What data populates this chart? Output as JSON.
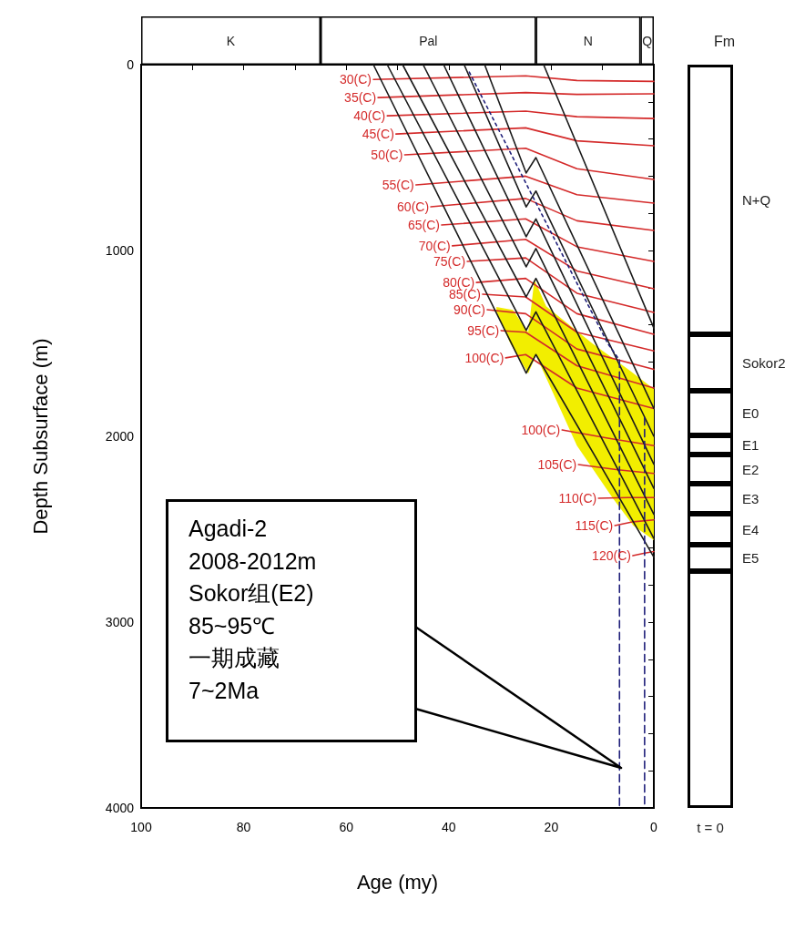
{
  "chart_data": [
    {
      "type": "line",
      "xlabel": "Age (my)",
      "ylabel": "Depth Subsurface (m)",
      "xlim": [
        100,
        0
      ],
      "xticks": [
        100,
        {
          "value": 90,
          "label": null
        },
        80,
        {
          "value": 70,
          "label": null
        },
        60,
        {
          "value": 50,
          "label": null
        },
        40,
        {
          "value": 30,
          "label": null
        },
        20,
        {
          "value": 10,
          "label": null
        },
        0
      ],
      "ylim": [
        4000,
        0
      ],
      "yticks": [
        0,
        {
          "value": 200,
          "label": null
        },
        {
          "value": 400,
          "label": null
        },
        {
          "value": 600,
          "label": null
        },
        {
          "value": 800,
          "label": null
        },
        1000,
        {
          "value": 1200,
          "label": null
        },
        {
          "value": 1400,
          "label": null
        },
        {
          "value": 1600,
          "label": null
        },
        {
          "value": 1800,
          "label": null
        },
        2000,
        {
          "value": 2200,
          "label": null
        },
        {
          "value": 2400,
          "label": null
        },
        {
          "value": 2600,
          "label": null
        },
        {
          "value": 2800,
          "label": null
        },
        3000,
        {
          "value": 3200,
          "label": null
        },
        {
          "value": 3400,
          "label": null
        },
        {
          "value": 3600,
          "label": null
        },
        {
          "value": 3800,
          "label": null
        },
        4000
      ],
      "grid": false,
      "marker": "none",
      "annotations": [
        "Agadi-2\n2008-2012m\nSokor组(E2)\n85~95℃\n一期成藏\n7~2Ma"
      ],
      "series": [
        {
          "type": "area",
          "color": "#f2ee00",
          "x": [
            30.7,
            27.5,
            24.5,
            23.3,
            21,
            12,
            5,
            0,
            0,
            4,
            8,
            15,
            23,
            24.5,
            28,
            30.7
          ],
          "values": [
            1304,
            1320,
            1440,
            1157,
            1300,
            1500,
            1640,
            1745,
            2559,
            2480,
            2333,
            2050,
            1564,
            1662,
            1500,
            1330
          ]
        },
        {
          "name": "30(C)",
          "color": "#d42a2a",
          "x": [
            54.7,
            25,
            15,
            0
          ],
          "values": [
            80,
            60,
            85,
            90
          ]
        },
        {
          "name": "35(C)",
          "color": "#d42a2a",
          "x": [
            53.8,
            25,
            15,
            0
          ],
          "values": [
            177,
            150,
            160,
            157
          ]
        },
        {
          "name": "40(C)",
          "color": "#d42a2a",
          "x": [
            52,
            25,
            15,
            0
          ],
          "values": [
            275,
            250,
            280,
            290
          ]
        },
        {
          "name": "45(C)",
          "color": "#d42a2a",
          "x": [
            50.3,
            25,
            15,
            0
          ],
          "values": [
            373,
            340,
            410,
            436
          ]
        },
        {
          "name": "50(C)",
          "color": "#d42a2a",
          "x": [
            48.6,
            25,
            15,
            0
          ],
          "values": [
            485,
            450,
            560,
            618
          ]
        },
        {
          "name": "55(C)",
          "color": "#d42a2a",
          "x": [
            46.4,
            25,
            15,
            0
          ],
          "values": [
            647,
            600,
            700,
            745
          ]
        },
        {
          "name": "60(C)",
          "color": "#d42a2a",
          "x": [
            43.5,
            25,
            15,
            0
          ],
          "values": [
            765,
            720,
            840,
            892
          ]
        },
        {
          "name": "65(C)",
          "color": "#d42a2a",
          "x": [
            41.4,
            25,
            15,
            0
          ],
          "values": [
            863,
            830,
            980,
            1059
          ]
        },
        {
          "name": "70(C)",
          "color": "#d42a2a",
          "x": [
            39.3,
            25,
            15,
            0
          ],
          "values": [
            975,
            940,
            1110,
            1206
          ]
        },
        {
          "name": "75(C)",
          "color": "#d42a2a",
          "x": [
            36.4,
            25,
            15,
            0
          ],
          "values": [
            1059,
            1040,
            1230,
            1333
          ]
        },
        {
          "name": "80(C)",
          "color": "#d42a2a",
          "x": [
            34.6,
            25,
            15,
            0
          ],
          "values": [
            1172,
            1150,
            1340,
            1451
          ]
        },
        {
          "name": "85(C)",
          "color": "#d42a2a",
          "x": [
            33.4,
            25,
            15,
            0
          ],
          "values": [
            1235,
            1250,
            1440,
            1540
          ]
        },
        {
          "name": "90(C)",
          "color": "#d42a2a",
          "x": [
            32.5,
            25,
            15,
            0
          ],
          "values": [
            1319,
            1340,
            1530,
            1640
          ]
        },
        {
          "name": "95(C)",
          "color": "#d42a2a",
          "x": [
            29.8,
            25,
            15,
            0
          ],
          "values": [
            1431,
            1440,
            1620,
            1740
          ]
        },
        {
          "name": "100(C)",
          "color": "#d42a2a",
          "x": [
            28.9,
            25,
            15,
            0
          ],
          "values": [
            1578,
            1560,
            1740,
            1850
          ]
        },
        {
          "name": "100(C)",
          "color": "#d42a2a",
          "x": [
            17.9,
            9,
            0
          ],
          "values": [
            1966,
            2010,
            2050
          ]
        },
        {
          "name": "105(C)",
          "color": "#d42a2a",
          "x": [
            14.7,
            7,
            0
          ],
          "values": [
            2152,
            2180,
            2200
          ]
        },
        {
          "name": "110(C)",
          "color": "#d42a2a",
          "x": [
            10.8,
            5,
            0
          ],
          "values": [
            2333,
            2330,
            2330
          ]
        },
        {
          "name": "115(C)",
          "color": "#d42a2a",
          "x": [
            7.6,
            4,
            0
          ],
          "values": [
            2480,
            2460,
            2450
          ]
        },
        {
          "name": "120(C)",
          "color": "#d42a2a",
          "x": [
            4.1,
            2,
            0
          ],
          "values": [
            2642,
            2630,
            2620
          ]
        },
        {
          "color": "#1a1a1a",
          "x": [
            54.7,
            24.9,
            23,
            0
          ],
          "values": [
            0,
            1660,
            1560,
            2650
          ]
        },
        {
          "color": "#1a1a1a",
          "x": [
            52,
            24.9,
            23,
            0
          ],
          "values": [
            0,
            1430,
            1330,
            2550
          ]
        },
        {
          "color": "#1a1a1a",
          "x": [
            49,
            24.9,
            23,
            0
          ],
          "values": [
            0,
            1250,
            1150,
            2420
          ]
        },
        {
          "color": "#1a1a1a",
          "x": [
            45,
            24.9,
            23,
            0
          ],
          "values": [
            0,
            1088,
            990,
            2280
          ]
        },
        {
          "color": "#1a1a1a",
          "x": [
            41,
            24.9,
            23,
            0
          ],
          "values": [
            0,
            926,
            830,
            2150
          ]
        },
        {
          "color": "#1a1a1a",
          "x": [
            37,
            24.9,
            23,
            0
          ],
          "values": [
            0,
            765,
            680,
            2000
          ]
        },
        {
          "color": "#1a1a1a",
          "x": [
            33,
            24.9,
            23,
            0
          ],
          "values": [
            0,
            583,
            500,
            1850
          ]
        },
        {
          "color": "#1a1a1a",
          "x": [
            21.5,
            0
          ],
          "values": [
            0,
            1417
          ]
        },
        {
          "color": "#1f1f7a",
          "line_style": "dotted",
          "x": [
            36,
            9,
            6.7
          ],
          "values": [
            40,
            1500,
            1590
          ]
        },
        {
          "color": "#1f1f7a",
          "line_style": "dashed",
          "x": [
            6.7,
            6.7
          ],
          "values": [
            1590,
            4000
          ]
        },
        {
          "color": "#1f1f7a",
          "line_style": "dashed",
          "x": [
            1.8,
            1.8
          ],
          "values": [
            1900,
            4000
          ]
        }
      ]
    },
    {
      "type": "bar",
      "orientation": "horizontal",
      "stacked": true,
      "categories": [
        null
      ],
      "xlim": [
        100,
        0
      ],
      "tick_labels": false,
      "series": [
        {
          "name": "Q",
          "color": "#ffffff",
          "values": [
            2.6
          ]
        },
        {
          "name": "N",
          "color": "#ffffff",
          "values": [
            20.4
          ]
        },
        {
          "name": "Pal",
          "color": "#ffffff",
          "values": [
            42
          ]
        },
        {
          "name": "K",
          "color": "#ffffff",
          "values": [
            35
          ]
        }
      ]
    },
    {
      "type": "bar",
      "title": "Fm",
      "categories": [
        "t = 0"
      ],
      "stacked": true,
      "ylim": [
        4000,
        0
      ],
      "tick_labels": "x",
      "series": [
        {
          "name": "N+Q",
          "color": "#ffffff",
          "values": [
            1451
          ]
        },
        {
          "name": "Sokor2",
          "color": "#ffffff",
          "values": [
            304
          ]
        },
        {
          "name": "E0",
          "color": "#ffffff",
          "values": [
            240
          ]
        },
        {
          "name": "E1",
          "color": "#ffffff",
          "values": [
            103
          ]
        },
        {
          "name": "E2",
          "color": "#ffffff",
          "values": [
            157
          ]
        },
        {
          "name": "E3",
          "color": "#ffffff",
          "values": [
            162
          ]
        },
        {
          "name": "E4",
          "color": "#ffffff",
          "values": [
            166
          ]
        },
        {
          "name": "E5",
          "color": "#ffffff",
          "values": [
            142
          ]
        },
        {
          "color": "#ffffff",
          "values": [
            1275
          ]
        }
      ]
    }
  ]
}
